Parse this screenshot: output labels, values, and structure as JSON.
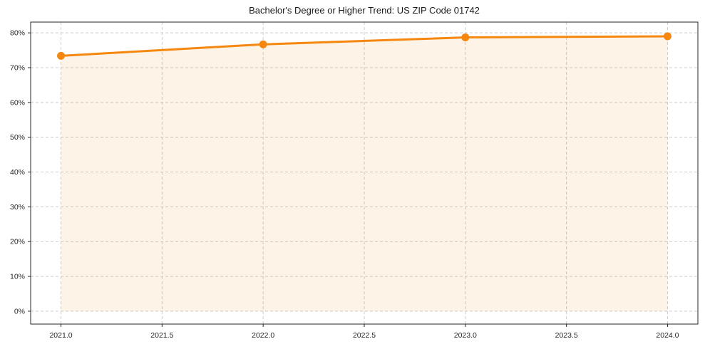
{
  "chart_data": {
    "type": "line",
    "title": "Bachelor's Degree or Higher Trend: US ZIP Code 01742",
    "series": [
      {
        "name": "Bachelor's Degree or Higher (%)",
        "x": [
          2021,
          2022,
          2023,
          2024
        ],
        "values": [
          73.4,
          76.7,
          78.7,
          79.0
        ]
      }
    ],
    "xlabel": "",
    "ylabel": "",
    "xlim": [
      2020.85,
      2024.15
    ],
    "ylim": [
      -3.7,
      83.1
    ],
    "x_ticks": {
      "values": [
        2021.0,
        2021.5,
        2022.0,
        2022.5,
        2023.0,
        2023.5,
        2024.0
      ],
      "labels": [
        "2021.0",
        "2021.5",
        "2022.0",
        "2022.5",
        "2023.0",
        "2023.5",
        "2024.0"
      ]
    },
    "y_ticks": {
      "values": [
        0,
        10,
        20,
        30,
        40,
        50,
        60,
        70,
        80
      ],
      "labels": [
        "0%",
        "10%",
        "20%",
        "30%",
        "40%",
        "50%",
        "60%",
        "70%",
        "80%"
      ]
    },
    "grid": true,
    "grid_style": "dashed",
    "legend": "none",
    "colors": {
      "line": "#f5870f",
      "marker": "#f5870f",
      "fill_opacity": 0.1,
      "grid": "#cccccc",
      "spine": "#262626",
      "tick_text": "#262626",
      "background": "#ffffff"
    }
  }
}
